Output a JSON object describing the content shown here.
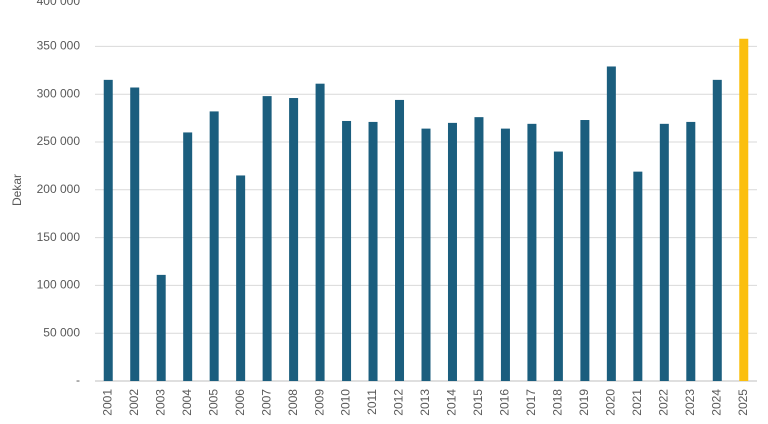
{
  "chart_data": {
    "type": "bar",
    "y_label": "Dekar",
    "categories": [
      "2001",
      "2002",
      "2003",
      "2004",
      "2005",
      "2006",
      "2007",
      "2008",
      "2009",
      "2010",
      "2011",
      "2012",
      "2013",
      "2014",
      "2015",
      "2016",
      "2017",
      "2018",
      "2019",
      "2020",
      "2021",
      "2022",
      "2023",
      "2024",
      "2025"
    ],
    "values": [
      315000,
      307000,
      111000,
      260000,
      282000,
      215000,
      298000,
      296000,
      311000,
      272000,
      271000,
      294000,
      264000,
      270000,
      276000,
      264000,
      269000,
      240000,
      273000,
      329000,
      219000,
      269000,
      271000,
      315000,
      358000
    ],
    "colors": [
      "#1b5e7e",
      "#1b5e7e",
      "#1b5e7e",
      "#1b5e7e",
      "#1b5e7e",
      "#1b5e7e",
      "#1b5e7e",
      "#1b5e7e",
      "#1b5e7e",
      "#1b5e7e",
      "#1b5e7e",
      "#1b5e7e",
      "#1b5e7e",
      "#1b5e7e",
      "#1b5e7e",
      "#1b5e7e",
      "#1b5e7e",
      "#1b5e7e",
      "#1b5e7e",
      "#1b5e7e",
      "#1b5e7e",
      "#1b5e7e",
      "#1b5e7e",
      "#1b5e7e",
      "#fbbf0e"
    ],
    "ylim": [
      0,
      400000
    ],
    "yticks": [
      {
        "value": 0,
        "label": "-"
      },
      {
        "value": 50000,
        "label": "50 000"
      },
      {
        "value": 100000,
        "label": "100 000"
      },
      {
        "value": 150000,
        "label": "150 000"
      },
      {
        "value": 200000,
        "label": "200 000"
      },
      {
        "value": 250000,
        "label": "250 000"
      },
      {
        "value": 300000,
        "label": "300 000"
      },
      {
        "value": 350000,
        "label": "350 000"
      },
      {
        "value": 400000,
        "label": "400 000"
      }
    ],
    "grid": true
  }
}
